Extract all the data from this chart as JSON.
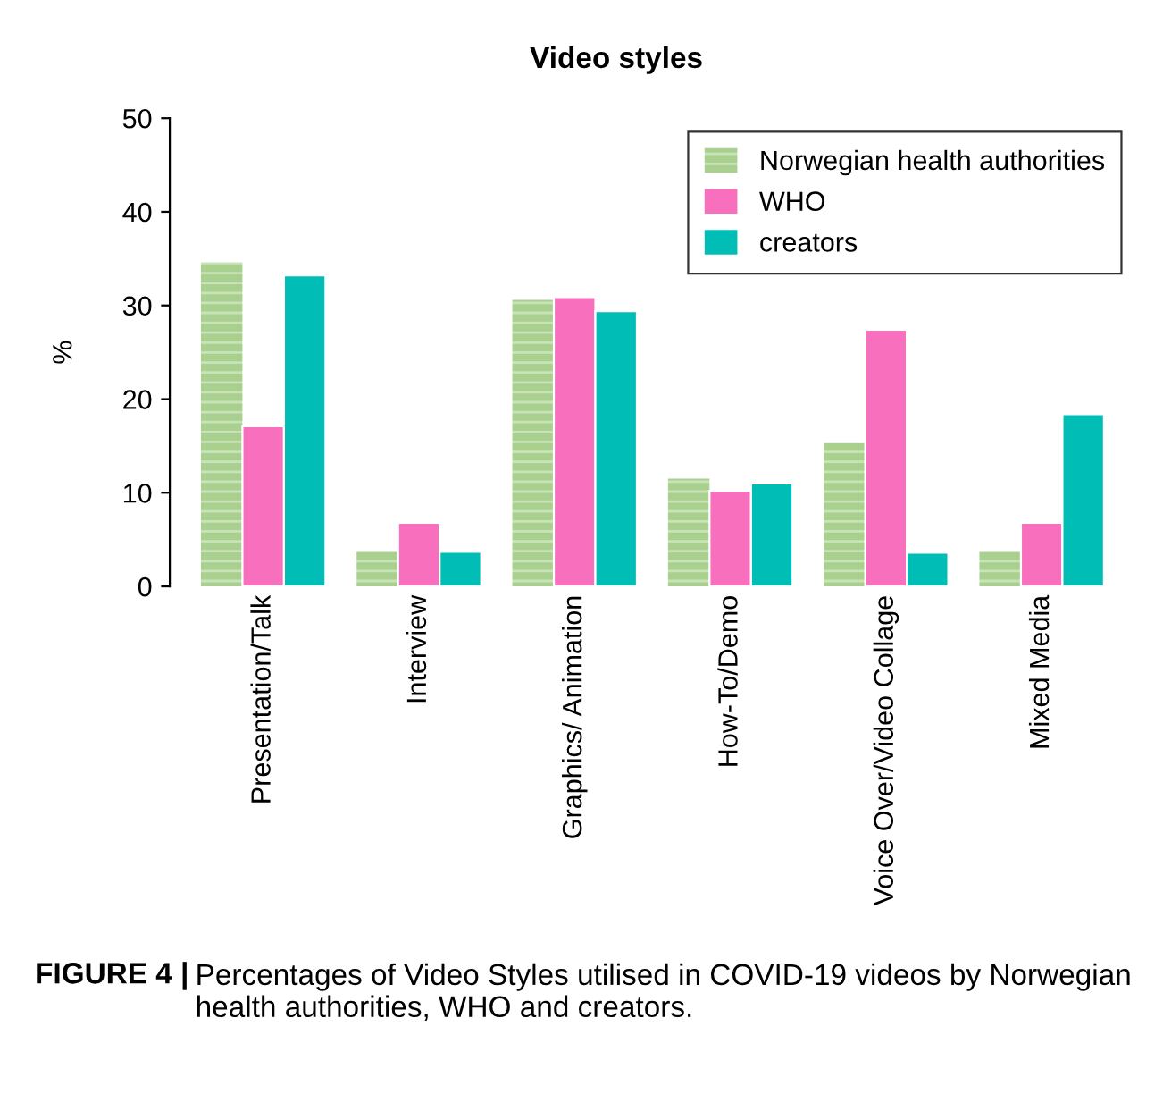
{
  "chart_data": {
    "type": "bar",
    "title": "Video styles",
    "ylabel": "%",
    "categories": [
      "Presentation/Talk",
      "Interview",
      "Graphics/ Animation",
      "How-To/Demo",
      "Voice Over/Video Collage",
      "Mixed Media"
    ],
    "series": [
      {
        "name": "Norwegian health authorities",
        "color": "#a9d08e",
        "values": [
          34.6,
          3.7,
          30.6,
          11.5,
          15.3,
          3.7
        ]
      },
      {
        "name": "WHO",
        "color": "#f76fbd",
        "values": [
          17.1,
          6.8,
          30.9,
          10.2,
          27.4,
          6.8
        ]
      },
      {
        "name": "creators",
        "color": "#00bdb5",
        "values": [
          33.2,
          3.7,
          29.4,
          11.0,
          3.6,
          18.4
        ]
      }
    ],
    "ylim": [
      0,
      50
    ],
    "yticks": [
      0,
      10,
      20,
      30,
      40,
      50
    ],
    "grid": false,
    "legend": "top right",
    "annotations": [
      "FIGURE 4 |",
      "Percentages of Video Styles utilised in COVID-19 videos by Norwegian health authorities, WHO and creators."
    ]
  }
}
